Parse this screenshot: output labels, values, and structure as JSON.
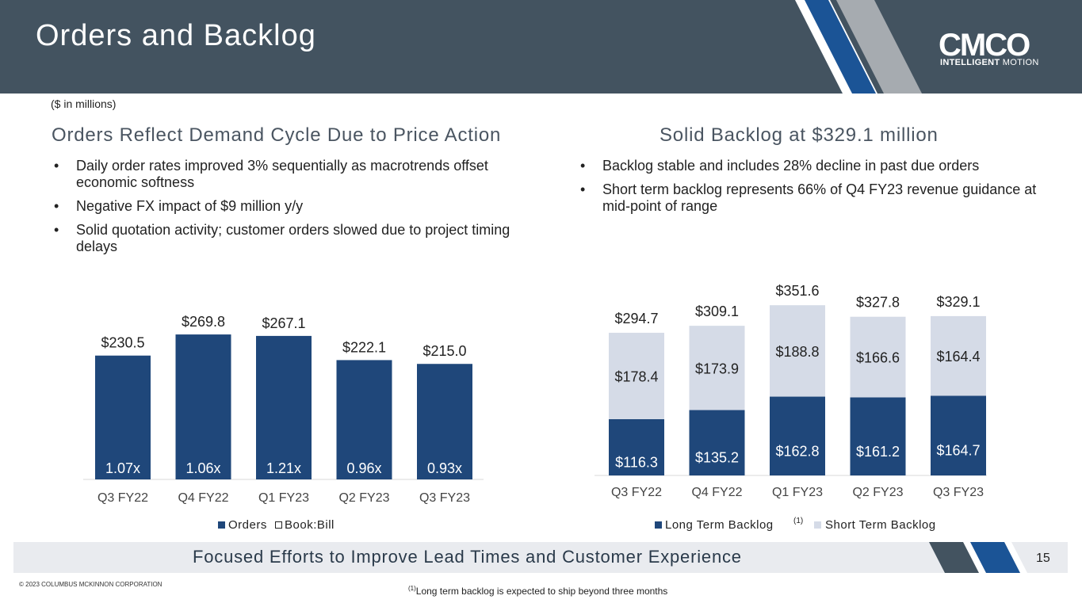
{
  "header": {
    "title": "Orders and Backlog"
  },
  "logo": {
    "mark": "CMCO",
    "tag_bold": "INTELLIGENT",
    "tag_rest": "MOTION"
  },
  "units_note": "($ in millions)",
  "left_section": {
    "title": "Orders Reflect Demand Cycle Due to Price Action",
    "bullets": [
      "Daily order rates improved 3% sequentially as macrotrends offset economic softness",
      "Negative FX impact of $9 million y/y",
      "Solid quotation activity; customer orders slowed due to project timing delays"
    ]
  },
  "right_section": {
    "title": "Solid Backlog at $329.1 million",
    "bullets": [
      "Backlog stable and includes 28% decline in past due orders",
      "Short term backlog represents 66% of Q4 FY23 revenue guidance at mid-point of range"
    ]
  },
  "chart_data": [
    {
      "type": "bar",
      "categories": [
        "Q3 FY22",
        "Q4 FY22",
        "Q1 FY23",
        "Q2 FY23",
        "Q3 FY23"
      ],
      "series": [
        {
          "name": "Orders",
          "values": [
            230.5,
            269.8,
            267.1,
            222.1,
            215.0
          ],
          "labels": [
            "$230.5",
            "$269.8",
            "$267.1",
            "$222.1",
            "$215.0"
          ]
        },
        {
          "name": "Book:Bill",
          "values": [
            1.07,
            1.06,
            1.21,
            0.96,
            0.93
          ],
          "labels": [
            "1.07x",
            "1.06x",
            "1.21x",
            "0.96x",
            "0.93x"
          ]
        }
      ],
      "legend": [
        "Orders",
        "Book:Bill"
      ],
      "colors": {
        "orders": "#1f477a",
        "book_bill": "#ffffff"
      }
    },
    {
      "type": "bar",
      "stacked": true,
      "categories": [
        "Q3 FY22",
        "Q4 FY22",
        "Q1 FY23",
        "Q2 FY23",
        "Q3 FY23"
      ],
      "series": [
        {
          "name": "Long Term Backlog",
          "values": [
            116.3,
            135.2,
            162.8,
            161.2,
            164.7
          ],
          "labels": [
            "$116.3",
            "$135.2",
            "$162.8",
            "$161.2",
            "$164.7"
          ]
        },
        {
          "name": "Short Term Backlog",
          "values": [
            178.4,
            173.9,
            188.8,
            166.6,
            164.4
          ],
          "labels": [
            "$178.4",
            "$173.9",
            "$188.8",
            "$166.6",
            "$164.4"
          ]
        }
      ],
      "totals": [
        294.7,
        309.1,
        351.6,
        327.8,
        329.1
      ],
      "total_labels": [
        "$294.7",
        "$309.1",
        "$351.6",
        "$327.8",
        "$329.1"
      ],
      "legend": [
        "Long Term Backlog",
        "Short Term Backlog"
      ],
      "legend_note": "(1)",
      "colors": {
        "long_term": "#1f477a",
        "short_term": "#d5dbe7"
      }
    }
  ],
  "footer": {
    "band_text": "Focused Efforts to Improve Lead Times and Customer Experience",
    "page_number": "15",
    "copyright": "© 2023 COLUMBUS MCKINNON CORPORATION",
    "footnote_marker": "(1)",
    "footnote_text": "Long term backlog is expected to ship beyond three months"
  },
  "theme": {
    "header_bg": "#435360",
    "accent_blue": "#1b5496",
    "accent_gray": "#a6abb0",
    "band_bg": "#e9ebef"
  }
}
